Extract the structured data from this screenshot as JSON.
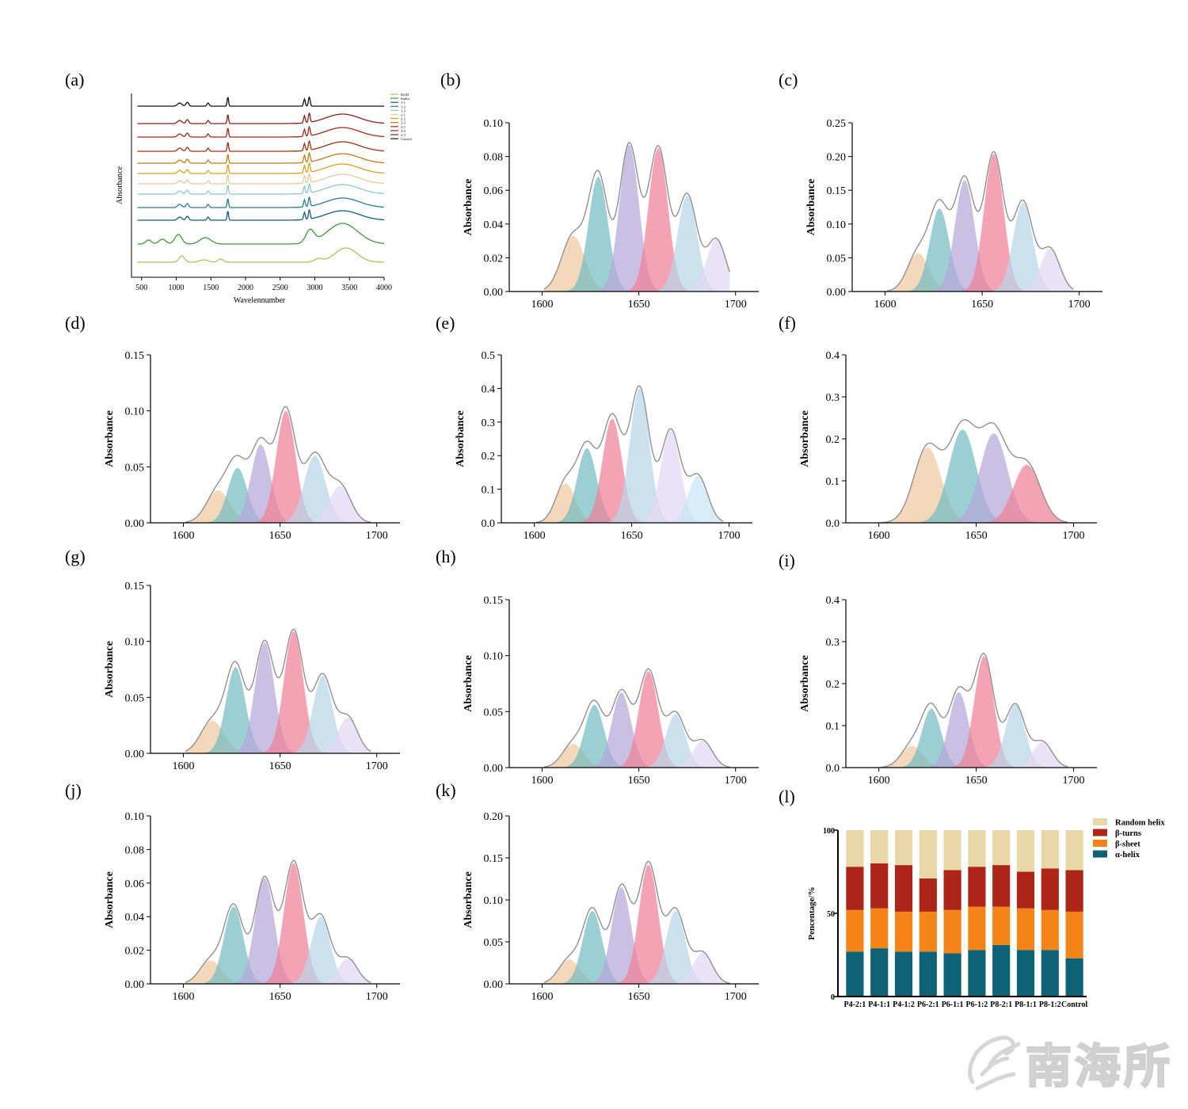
{
  "figure": {
    "watermark": "南海所"
  },
  "colors": {
    "peach": "#f0c9a2",
    "teal": "#74bcc2",
    "lavender": "#b6a8d8",
    "pink": "#f07f98",
    "lightblue": "#b8d6e8",
    "lightlavender": "#e2d8f4",
    "paleblue": "#c9e6f6",
    "envelope": "#909090",
    "bar_random": "#e9d7a8",
    "bar_turns": "#ad2418",
    "bar_sheet": "#f48418",
    "bar_helix": "#0e6275"
  },
  "chart_data": [
    {
      "panel": "(a)",
      "type": "line",
      "xlabel": "Wavelennumber",
      "ylabel": "Absorbance",
      "xlim": [
        400,
        4000
      ],
      "xticks": [
        500,
        1000,
        1500,
        2000,
        2500,
        3000,
        3500,
        4000
      ],
      "grid": false,
      "legend_position": "top-right",
      "series": [
        {
          "name": "RGM",
          "color": "#9acc5a",
          "offset": 0
        },
        {
          "name": "Inulin",
          "color": "#3c9a3a",
          "offset": 1
        },
        {
          "name": "1-1",
          "color": "#125e72",
          "offset": 2
        },
        {
          "name": "1-2",
          "color": "#267e8a",
          "offset": 3
        },
        {
          "name": "1-3",
          "color": "#8ccac8",
          "offset": 4
        },
        {
          "name": "2-1",
          "color": "#e8c89c",
          "offset": 5
        },
        {
          "name": "2-2",
          "color": "#dca01e",
          "offset": 6
        },
        {
          "name": "2-3",
          "color": "#c67a14",
          "offset": 7
        },
        {
          "name": "3-1",
          "color": "#9a3210",
          "offset": 8
        },
        {
          "name": "3-2",
          "color": "#a02a1a",
          "offset": 9
        },
        {
          "name": "3-3",
          "color": "#8a1f14",
          "offset": 10
        },
        {
          "name": "Control",
          "color": "#111111",
          "offset": 11
        }
      ]
    },
    {
      "panel": "(b)",
      "type": "area",
      "ylabel": "Absorbance",
      "xlim": [
        1592,
        1712
      ],
      "xticks": [
        1600,
        1650,
        1700
      ],
      "ylim": [
        0,
        0.1
      ],
      "yticks": [
        "0.00",
        "0.02",
        "0.04",
        "0.06",
        "0.08",
        "0.10"
      ],
      "x_start": 1601,
      "x_end": 1697,
      "peaks": [
        {
          "center": 1616,
          "height": 0.033,
          "sigma": 6.0,
          "color": "peach"
        },
        {
          "center": 1629,
          "height": 0.068,
          "sigma": 5.0,
          "color": "teal"
        },
        {
          "center": 1645,
          "height": 0.087,
          "sigma": 5.0,
          "color": "lavender"
        },
        {
          "center": 1660,
          "height": 0.085,
          "sigma": 5.0,
          "color": "pink"
        },
        {
          "center": 1675,
          "height": 0.057,
          "sigma": 5.0,
          "color": "lightblue"
        },
        {
          "center": 1690,
          "height": 0.031,
          "sigma": 5.0,
          "color": "lightlavender"
        }
      ]
    },
    {
      "panel": "(c)",
      "type": "area",
      "ylabel": "Absorbance",
      "xlim": [
        1592,
        1712
      ],
      "xticks": [
        1600,
        1650,
        1700
      ],
      "ylim": [
        0,
        0.25
      ],
      "yticks": [
        "0.00",
        "0.05",
        "0.10",
        "0.15",
        "0.20",
        "0.25"
      ],
      "x_start": 1601,
      "x_end": 1697,
      "peaks": [
        {
          "center": 1617,
          "height": 0.057,
          "sigma": 5.5,
          "color": "peach"
        },
        {
          "center": 1628,
          "height": 0.123,
          "sigma": 5.0,
          "color": "teal"
        },
        {
          "center": 1641,
          "height": 0.165,
          "sigma": 5.0,
          "color": "lavender"
        },
        {
          "center": 1656,
          "height": 0.204,
          "sigma": 5.0,
          "color": "pink"
        },
        {
          "center": 1671,
          "height": 0.132,
          "sigma": 5.0,
          "color": "lightblue"
        },
        {
          "center": 1685,
          "height": 0.063,
          "sigma": 5.0,
          "color": "lightlavender"
        }
      ]
    },
    {
      "panel": "(d)",
      "type": "area",
      "ylabel": "Absorbance",
      "xlim": [
        1592,
        1712
      ],
      "xticks": [
        1600,
        1650,
        1700
      ],
      "ylim": [
        0,
        0.15
      ],
      "yticks": [
        "0.00",
        "0.05",
        "0.10",
        "0.15"
      ],
      "x_start": 1601,
      "x_end": 1697,
      "peaks": [
        {
          "center": 1618,
          "height": 0.029,
          "sigma": 6.0,
          "color": "peach"
        },
        {
          "center": 1628,
          "height": 0.049,
          "sigma": 5.0,
          "color": "teal"
        },
        {
          "center": 1640,
          "height": 0.07,
          "sigma": 5.0,
          "color": "lavender"
        },
        {
          "center": 1653,
          "height": 0.1,
          "sigma": 5.0,
          "color": "pink"
        },
        {
          "center": 1668,
          "height": 0.06,
          "sigma": 5.5,
          "color": "lightblue"
        },
        {
          "center": 1681,
          "height": 0.033,
          "sigma": 5.5,
          "color": "lightlavender"
        }
      ]
    },
    {
      "panel": "(e)",
      "type": "area",
      "ylabel": "Absorbance",
      "xlim": [
        1592,
        1712
      ],
      "xticks": [
        1600,
        1650,
        1700
      ],
      "ylim": [
        0,
        0.5
      ],
      "yticks": [
        "0.0",
        "0.1",
        "0.2",
        "0.3",
        "0.4",
        "0.5"
      ],
      "x_start": 1601,
      "x_end": 1697,
      "peaks": [
        {
          "center": 1616,
          "height": 0.118,
          "sigma": 5.0,
          "color": "peach"
        },
        {
          "center": 1627,
          "height": 0.222,
          "sigma": 5.0,
          "color": "teal"
        },
        {
          "center": 1640,
          "height": 0.31,
          "sigma": 5.0,
          "color": "pink"
        },
        {
          "center": 1654,
          "height": 0.4,
          "sigma": 5.0,
          "color": "lightblue"
        },
        {
          "center": 1670,
          "height": 0.275,
          "sigma": 5.0,
          "color": "lightlavender"
        },
        {
          "center": 1684,
          "height": 0.14,
          "sigma": 5.0,
          "color": "paleblue"
        }
      ]
    },
    {
      "panel": "(f)",
      "type": "area",
      "ylabel": "Absorbance",
      "xlim": [
        1592,
        1712
      ],
      "xticks": [
        1600,
        1650,
        1700
      ],
      "ylim": [
        0,
        0.4
      ],
      "yticks": [
        "0.0",
        "0.1",
        "0.2",
        "0.3",
        "0.4"
      ],
      "x_start": 1601,
      "x_end": 1697,
      "peaks": [
        {
          "center": 1625,
          "height": 0.18,
          "sigma": 7.0,
          "color": "peach"
        },
        {
          "center": 1643,
          "height": 0.222,
          "sigma": 7.0,
          "color": "teal"
        },
        {
          "center": 1659,
          "height": 0.213,
          "sigma": 7.0,
          "color": "lavender"
        },
        {
          "center": 1676,
          "height": 0.138,
          "sigma": 7.0,
          "color": "pink"
        }
      ]
    },
    {
      "panel": "(g)",
      "type": "area",
      "ylabel": "Absorbance",
      "xlim": [
        1592,
        1712
      ],
      "xticks": [
        1600,
        1650,
        1700
      ],
      "ylim": [
        0,
        0.15
      ],
      "yticks": [
        "0.00",
        "0.05",
        "0.10",
        "0.15"
      ],
      "x_start": 1601,
      "x_end": 1697,
      "peaks": [
        {
          "center": 1615,
          "height": 0.029,
          "sigma": 6.0,
          "color": "peach"
        },
        {
          "center": 1627,
          "height": 0.077,
          "sigma": 5.0,
          "color": "teal"
        },
        {
          "center": 1642,
          "height": 0.099,
          "sigma": 5.0,
          "color": "lavender"
        },
        {
          "center": 1657,
          "height": 0.109,
          "sigma": 5.0,
          "color": "pink"
        },
        {
          "center": 1672,
          "height": 0.069,
          "sigma": 5.0,
          "color": "lightblue"
        },
        {
          "center": 1685,
          "height": 0.032,
          "sigma": 5.0,
          "color": "lightlavender"
        }
      ]
    },
    {
      "panel": "(h)",
      "type": "area",
      "ylabel": "Absorbance",
      "xlim": [
        1592,
        1712
      ],
      "xticks": [
        1600,
        1650,
        1700
      ],
      "ylim": [
        0,
        0.15
      ],
      "yticks": [
        "0.00",
        "0.05",
        "0.10",
        "0.15"
      ],
      "x_start": 1601,
      "x_end": 1697,
      "peaks": [
        {
          "center": 1616,
          "height": 0.021,
          "sigma": 5.5,
          "color": "peach"
        },
        {
          "center": 1627,
          "height": 0.056,
          "sigma": 5.0,
          "color": "teal"
        },
        {
          "center": 1641,
          "height": 0.067,
          "sigma": 5.0,
          "color": "lavender"
        },
        {
          "center": 1655,
          "height": 0.086,
          "sigma": 5.0,
          "color": "pink"
        },
        {
          "center": 1669,
          "height": 0.048,
          "sigma": 5.0,
          "color": "lightblue"
        },
        {
          "center": 1683,
          "height": 0.024,
          "sigma": 5.0,
          "color": "lightlavender"
        }
      ]
    },
    {
      "panel": "(i)",
      "type": "area",
      "ylabel": "Absorbance",
      "xlim": [
        1592,
        1712
      ],
      "xticks": [
        1600,
        1650,
        1700
      ],
      "ylim": [
        0,
        0.4
      ],
      "yticks": [
        "0.0",
        "0.1",
        "0.2",
        "0.3",
        "0.4"
      ],
      "x_start": 1601,
      "x_end": 1697,
      "peaks": [
        {
          "center": 1617,
          "height": 0.052,
          "sigma": 5.5,
          "color": "peach"
        },
        {
          "center": 1627,
          "height": 0.14,
          "sigma": 5.0,
          "color": "teal"
        },
        {
          "center": 1641,
          "height": 0.18,
          "sigma": 5.0,
          "color": "lavender"
        },
        {
          "center": 1654,
          "height": 0.265,
          "sigma": 5.0,
          "color": "pink"
        },
        {
          "center": 1670,
          "height": 0.15,
          "sigma": 5.0,
          "color": "lightblue"
        },
        {
          "center": 1684,
          "height": 0.061,
          "sigma": 5.0,
          "color": "lightlavender"
        }
      ]
    },
    {
      "panel": "(j)",
      "type": "area",
      "ylabel": "Absorbance",
      "xlim": [
        1592,
        1712
      ],
      "xticks": [
        1600,
        1650,
        1700
      ],
      "ylim": [
        0,
        0.1
      ],
      "yticks": [
        "0.00",
        "0.02",
        "0.04",
        "0.06",
        "0.08",
        "0.10"
      ],
      "x_start": 1601,
      "x_end": 1697,
      "peaks": [
        {
          "center": 1614,
          "height": 0.014,
          "sigma": 5.5,
          "color": "peach"
        },
        {
          "center": 1626,
          "height": 0.046,
          "sigma": 5.0,
          "color": "teal"
        },
        {
          "center": 1642,
          "height": 0.063,
          "sigma": 5.0,
          "color": "lavender"
        },
        {
          "center": 1657,
          "height": 0.072,
          "sigma": 5.0,
          "color": "pink"
        },
        {
          "center": 1671,
          "height": 0.04,
          "sigma": 5.0,
          "color": "lightblue"
        },
        {
          "center": 1685,
          "height": 0.015,
          "sigma": 5.0,
          "color": "lightlavender"
        }
      ]
    },
    {
      "panel": "(k)",
      "type": "area",
      "ylabel": "Absorbance",
      "xlim": [
        1592,
        1712
      ],
      "xticks": [
        1600,
        1650,
        1700
      ],
      "ylim": [
        0,
        0.2
      ],
      "yticks": [
        "0.00",
        "0.05",
        "0.10",
        "0.15",
        "0.20"
      ],
      "x_start": 1601,
      "x_end": 1697,
      "peaks": [
        {
          "center": 1614,
          "height": 0.029,
          "sigma": 5.5,
          "color": "peach"
        },
        {
          "center": 1626,
          "height": 0.087,
          "sigma": 5.0,
          "color": "teal"
        },
        {
          "center": 1641,
          "height": 0.115,
          "sigma": 5.0,
          "color": "lavender"
        },
        {
          "center": 1655,
          "height": 0.142,
          "sigma": 5.0,
          "color": "pink"
        },
        {
          "center": 1669,
          "height": 0.087,
          "sigma": 5.0,
          "color": "lightblue"
        },
        {
          "center": 1683,
          "height": 0.037,
          "sigma": 5.0,
          "color": "lightlavender"
        }
      ]
    },
    {
      "panel": "(l)",
      "type": "bar",
      "stacked": true,
      "ylabel": "Pencentage/%",
      "ylim": [
        0,
        100
      ],
      "yticks": [
        "0",
        "50",
        "100"
      ],
      "legend_position": "top-right",
      "categories": [
        "P4-2:1",
        "P4-1:1",
        "P4-1:2",
        "P6-2:1",
        "P6-1:1",
        "P6-1:2",
        "P8-2:1",
        "P8-1:1",
        "P8-1:2",
        "Control"
      ],
      "series": [
        {
          "name": "α-helix",
          "color": "bar_helix",
          "values": [
            27,
            29,
            27,
            27,
            26,
            28,
            31,
            28,
            28,
            23
          ]
        },
        {
          "name": "β-sheet",
          "color": "bar_sheet",
          "values": [
            25,
            24,
            24,
            24,
            26,
            26,
            23,
            25,
            24,
            28
          ]
        },
        {
          "name": "β-turns",
          "color": "bar_turns",
          "values": [
            26,
            27,
            28,
            20,
            24,
            24,
            25,
            22,
            25,
            25
          ]
        },
        {
          "name": "Random helix",
          "color": "bar_random",
          "values": [
            22,
            20,
            21,
            29,
            24,
            22,
            21,
            25,
            23,
            24
          ]
        }
      ],
      "legend_order": [
        "Random helix",
        "β-turns",
        "β-sheet",
        "α-helix"
      ]
    }
  ]
}
